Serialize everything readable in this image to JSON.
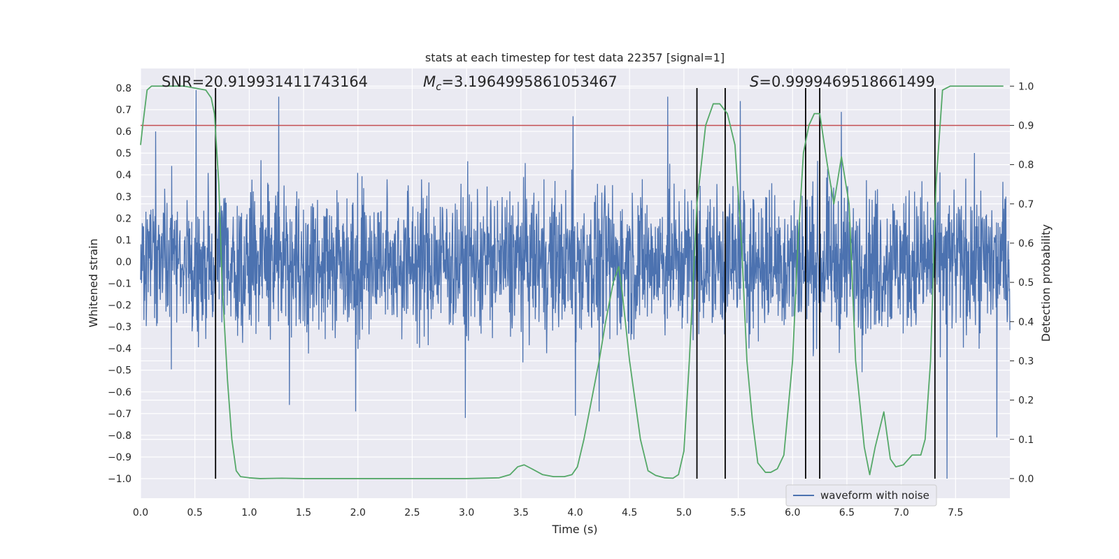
{
  "chart_data": {
    "type": "line",
    "title": "stats at each timestep for test data 22357 [signal=1]",
    "xlabel": "Time (s)",
    "ylabel": "Whitened strain",
    "y2label": "Detection probability",
    "xlim": [
      0.0,
      8.0
    ],
    "ylim": [
      -1.09,
      0.89
    ],
    "y2lim": [
      -0.05,
      1.045
    ],
    "xticks": [
      "0.0",
      "0.5",
      "1.0",
      "1.5",
      "2.0",
      "2.5",
      "3.0",
      "3.5",
      "4.0",
      "4.5",
      "5.0",
      "5.5",
      "6.0",
      "6.5",
      "7.0",
      "7.5"
    ],
    "yticks": [
      "0.8",
      "0.7",
      "0.6",
      "0.5",
      "0.4",
      "0.3",
      "0.2",
      "0.1",
      "0.0",
      "−0.1",
      "−0.2",
      "−0.3",
      "−0.4",
      "−0.5",
      "−0.6",
      "−0.7",
      "−0.8",
      "−0.9",
      "−1.0"
    ],
    "y2ticks": [
      "1.0",
      "0.9",
      "0.8",
      "0.7",
      "0.6",
      "0.5",
      "0.4",
      "0.3",
      "0.2",
      "0.1",
      "0.0"
    ],
    "grid": true,
    "legend": {
      "placement": "lower-right",
      "entries": [
        "waveform with noise"
      ]
    },
    "annotations": {
      "snr": "SNR=20.919931411743164",
      "mc_sym": "M",
      "mc_sub": "c",
      "mc_val": "=3.1964995861053467",
      "s_sym": "S",
      "s_val": "=0.9999469518661499"
    },
    "threshold": {
      "y2": 0.9,
      "color": "#c44e52"
    },
    "detection_times": [
      0.69,
      5.12,
      5.38,
      6.12,
      6.25,
      7.31
    ],
    "series": [
      {
        "name": "waveform with noise",
        "axis": "left",
        "color": "#4c72b0",
        "amplitude_typical": 0.27,
        "peaks_pos": [
          [
            0.14,
            0.6
          ],
          [
            0.51,
            0.79
          ],
          [
            1.27,
            0.76
          ],
          [
            3.98,
            0.67
          ],
          [
            4.22,
            0.68
          ],
          [
            4.85,
            0.76
          ],
          [
            5.52,
            0.74
          ],
          [
            6.45,
            0.69
          ]
        ],
        "peaks_neg": [
          [
            1.37,
            -0.66
          ],
          [
            1.98,
            -0.69
          ],
          [
            2.99,
            -0.72
          ],
          [
            4.0,
            -0.71
          ],
          [
            4.22,
            -0.69
          ],
          [
            7.42,
            -1.0
          ],
          [
            7.88,
            -0.81
          ]
        ]
      },
      {
        "name": "",
        "axis": "right",
        "color": "#55a868",
        "x": [
          0.0,
          0.02,
          0.06,
          0.1,
          0.2,
          0.4,
          0.6,
          0.65,
          0.68,
          0.72,
          0.75,
          0.8,
          0.84,
          0.88,
          0.92,
          1.0,
          1.1,
          1.3,
          1.5,
          2.0,
          2.5,
          3.0,
          3.3,
          3.4,
          3.47,
          3.53,
          3.6,
          3.7,
          3.8,
          3.9,
          3.97,
          4.02,
          4.08,
          4.15,
          4.22,
          4.28,
          4.35,
          4.4,
          4.43,
          4.5,
          4.6,
          4.67,
          4.74,
          4.82,
          4.9,
          4.95,
          5.0,
          5.05,
          5.12,
          5.2,
          5.27,
          5.33,
          5.4,
          5.47,
          5.53,
          5.58,
          5.63,
          5.68,
          5.75,
          5.8,
          5.86,
          5.92,
          6.0,
          6.05,
          6.1,
          6.15,
          6.2,
          6.25,
          6.32,
          6.38,
          6.45,
          6.52,
          6.58,
          6.66,
          6.71,
          6.76,
          6.84,
          6.9,
          6.95,
          7.02,
          7.1,
          7.18,
          7.22,
          7.27,
          7.32,
          7.38,
          7.45,
          7.55,
          7.7,
          7.85,
          7.94
        ],
        "y": [
          0.85,
          0.9,
          0.99,
          1.0,
          1.0,
          1.0,
          0.99,
          0.97,
          0.93,
          0.75,
          0.5,
          0.25,
          0.1,
          0.02,
          0.005,
          0.002,
          0.0,
          0.001,
          0.0,
          0.0,
          0.0,
          0.0,
          0.002,
          0.01,
          0.03,
          0.035,
          0.025,
          0.01,
          0.005,
          0.005,
          0.01,
          0.03,
          0.1,
          0.2,
          0.3,
          0.4,
          0.5,
          0.54,
          0.48,
          0.3,
          0.1,
          0.02,
          0.008,
          0.002,
          0.001,
          0.01,
          0.07,
          0.3,
          0.7,
          0.9,
          0.955,
          0.955,
          0.93,
          0.85,
          0.6,
          0.3,
          0.15,
          0.04,
          0.016,
          0.016,
          0.025,
          0.06,
          0.3,
          0.6,
          0.83,
          0.9,
          0.93,
          0.93,
          0.8,
          0.7,
          0.82,
          0.7,
          0.3,
          0.08,
          0.01,
          0.08,
          0.17,
          0.05,
          0.03,
          0.035,
          0.06,
          0.06,
          0.1,
          0.3,
          0.75,
          0.99,
          1.0,
          1.0,
          1.0,
          1.0,
          1.0
        ]
      }
    ]
  }
}
